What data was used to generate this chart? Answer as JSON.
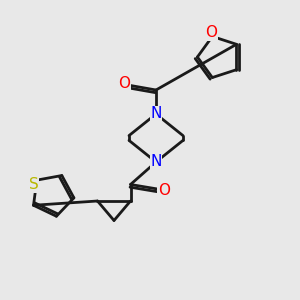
{
  "background_color": "#e8e8e8",
  "bond_color": "#1a1a1a",
  "N_color": "#0000ff",
  "O_color": "#ff0000",
  "S_color": "#b8b800",
  "line_width": 2.0,
  "figsize": [
    3.0,
    3.0
  ],
  "dpi": 100,
  "xlim": [
    0,
    10
  ],
  "ylim": [
    0,
    10
  ]
}
